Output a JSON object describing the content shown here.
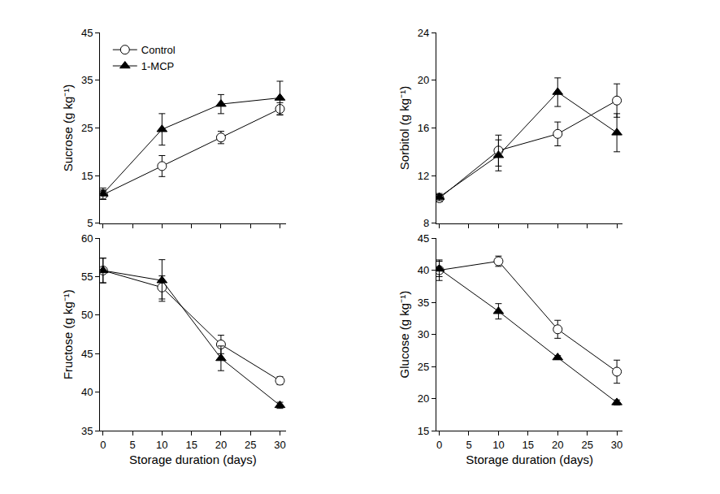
{
  "chart_data": [
    {
      "type": "line",
      "ylabel": "Sucrose (g kg⁻¹)",
      "x": [
        0,
        10,
        20,
        30
      ],
      "xlim": [
        -0.5,
        31
      ],
      "xticks": [
        0,
        5,
        10,
        15,
        20,
        25,
        30
      ],
      "ylim": [
        5,
        45
      ],
      "yticks": [
        5,
        15,
        25,
        35,
        45
      ],
      "tick_labels": "y",
      "legend": "upper left",
      "series": [
        {
          "name": "Control",
          "color": "#000000",
          "marker": "open_circle",
          "values": [
            11,
            17,
            23,
            29
          ],
          "error": [
            1,
            2.2,
            1.3,
            1.3
          ]
        },
        {
          "name": "1-MCP",
          "color": "#000000",
          "marker": "triangle",
          "values": [
            11.2,
            24.7,
            30,
            31.3
          ],
          "error": [
            1.2,
            3.3,
            2,
            3.5
          ]
        }
      ]
    },
    {
      "type": "line",
      "ylabel": "Sorbitol (g kg⁻¹)",
      "x": [
        0,
        10,
        20,
        30
      ],
      "xlim": [
        -0.5,
        31
      ],
      "xticks": [
        0,
        5,
        10,
        15,
        20,
        25,
        30
      ],
      "ylim": [
        8,
        24
      ],
      "yticks": [
        8,
        12,
        16,
        20,
        24
      ],
      "tick_labels": "y",
      "series": [
        {
          "name": "Control",
          "color": "#000000",
          "marker": "open_circle",
          "values": [
            10.1,
            14.1,
            15.5,
            18.3
          ],
          "error": [
            0.3,
            1.3,
            1.0,
            1.4
          ]
        },
        {
          "name": "1-MCP",
          "color": "#000000",
          "marker": "triangle",
          "values": [
            10.2,
            13.7,
            19,
            15.6
          ],
          "error": [
            0.3,
            1.3,
            1.2,
            1.6
          ]
        }
      ]
    },
    {
      "type": "line",
      "xlabel": "Storage duration (days)",
      "ylabel": "Fructose (g kg⁻¹)",
      "x": [
        0,
        10,
        20,
        30
      ],
      "xlim": [
        -0.5,
        31
      ],
      "xticks": [
        0,
        5,
        10,
        15,
        20,
        25,
        30
      ],
      "ylim": [
        35,
        60
      ],
      "yticks": [
        35,
        40,
        45,
        50,
        55,
        60
      ],
      "series": [
        {
          "name": "Control",
          "color": "#000000",
          "marker": "open_circle",
          "values": [
            55.8,
            53.6,
            46.2,
            41.5
          ],
          "error": [
            1.6,
            1.5,
            1.2,
            0.5
          ]
        },
        {
          "name": "1-MCP",
          "color": "#000000",
          "marker": "triangle",
          "values": [
            55.8,
            54.5,
            44.4,
            38.3
          ],
          "error": [
            1.6,
            2.7,
            1.6,
            0.4
          ]
        }
      ]
    },
    {
      "type": "line",
      "xlabel": "Storage duration (days)",
      "ylabel": "Glucose (g kg⁻¹)",
      "x": [
        0,
        10,
        20,
        30
      ],
      "xlim": [
        -0.5,
        31
      ],
      "xticks": [
        0,
        5,
        10,
        15,
        20,
        25,
        30
      ],
      "ylim": [
        15,
        45
      ],
      "yticks": [
        15,
        20,
        25,
        30,
        35,
        40,
        45
      ],
      "series": [
        {
          "name": "Control",
          "color": "#000000",
          "marker": "open_circle",
          "values": [
            40,
            41.4,
            30.8,
            24.2
          ],
          "error": [
            1.6,
            0.8,
            1.4,
            1.8
          ]
        },
        {
          "name": "1-MCP",
          "color": "#000000",
          "marker": "triangle",
          "values": [
            40.2,
            33.6,
            26.4,
            19.4
          ],
          "error": [
            1.2,
            1.2,
            0.3,
            0.4
          ]
        }
      ]
    }
  ]
}
